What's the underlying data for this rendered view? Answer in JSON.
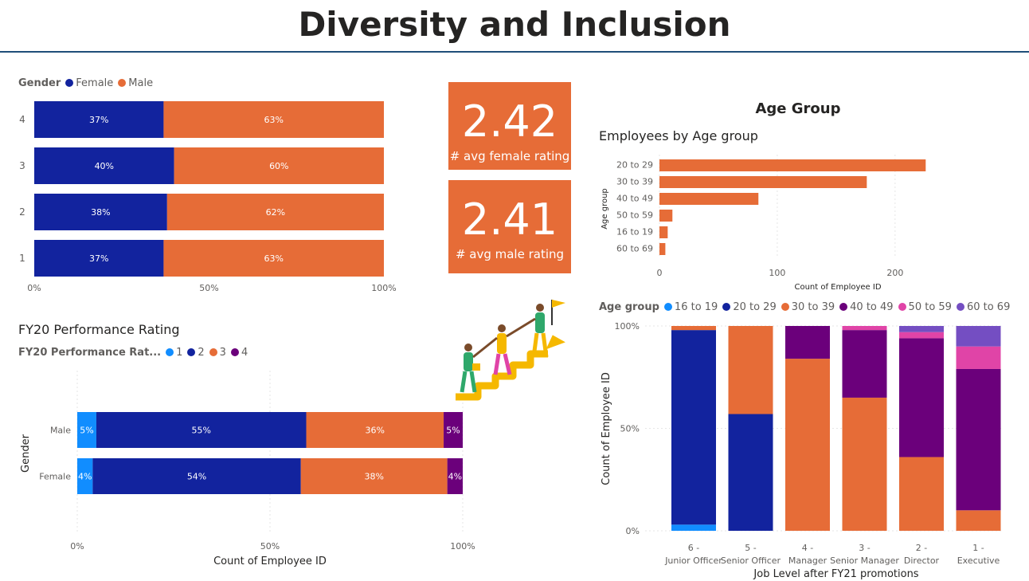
{
  "page": {
    "title": "Diversity and Inclusion"
  },
  "colors": {
    "female": "#12239e",
    "male": "#e66c37",
    "r1": "#118dff",
    "r2": "#12239e",
    "r3": "#e66c37",
    "r4": "#6b007b",
    "a50": "#e044a7",
    "a60": "#744ec2",
    "rule": "#1f4e79"
  },
  "kpi": {
    "female": {
      "value": "2.42",
      "label": "# avg female rating"
    },
    "male": {
      "value": "2.41",
      "label": "# avg male rating"
    }
  },
  "icons": {
    "illustration": "people-climbing-stairs-icon"
  },
  "chart_data": [
    {
      "id": "gender-by-rating",
      "type": "bar",
      "orientation": "horizontal",
      "stacked": "100%",
      "legend_title": "Gender",
      "categories": [
        "4",
        "3",
        "2",
        "1"
      ],
      "series": [
        {
          "name": "Female",
          "values": [
            37,
            40,
            38,
            37
          ],
          "labels": [
            "37%",
            "40%",
            "38%",
            "37%"
          ]
        },
        {
          "name": "Male",
          "values": [
            63,
            60,
            62,
            63
          ],
          "labels": [
            "63%",
            "60%",
            "62%",
            "63%"
          ]
        }
      ],
      "xticks": [
        "0%",
        "50%",
        "100%"
      ],
      "xlim": [
        0,
        100
      ],
      "legend_position": "top-left"
    },
    {
      "id": "age-group",
      "type": "bar",
      "orientation": "horizontal",
      "header": "Age Group",
      "title": "Employees by Age group",
      "categories": [
        "20 to 29",
        "30 to 39",
        "40 to 49",
        "50 to 59",
        "16 to 19",
        "60 to 69"
      ],
      "values": [
        226,
        176,
        84,
        11,
        7,
        5
      ],
      "xlabel": "Count of Employee ID",
      "ylabel": "Age group",
      "xticks": [
        "0",
        "100",
        "200"
      ],
      "xlim": [
        0,
        240
      ]
    },
    {
      "id": "fy20-performance",
      "type": "bar",
      "orientation": "horizontal",
      "stacked": "100%",
      "title": "FY20 Performance Rating",
      "legend_title": "FY20 Performance Rat...",
      "categories": [
        "Male",
        "Female"
      ],
      "series": [
        {
          "name": "1",
          "values": [
            5,
            4
          ],
          "labels": [
            "5%",
            "4%"
          ]
        },
        {
          "name": "2",
          "values": [
            55,
            54
          ],
          "labels": [
            "55%",
            "54%"
          ]
        },
        {
          "name": "3",
          "values": [
            36,
            38
          ],
          "labels": [
            "36%",
            "38%"
          ]
        },
        {
          "name": "4",
          "values": [
            5,
            4
          ],
          "labels": [
            "5%",
            "4%"
          ]
        }
      ],
      "xlabel": "Count of Employee ID",
      "ylabel": "Gender",
      "xticks": [
        "0%",
        "50%",
        "100%"
      ],
      "xlim": [
        0,
        100
      ],
      "legend_position": "top-left"
    },
    {
      "id": "age-by-job-level",
      "type": "bar",
      "orientation": "vertical",
      "stacked": "100%",
      "legend_title": "Age group",
      "categories": [
        "6 - Junior Officer",
        "5 - Senior Officer",
        "4 - Manager",
        "3 - Senior Manager",
        "2 - Director",
        "1 - Executive"
      ],
      "series": [
        {
          "name": "16 to 19",
          "values": [
            3,
            0,
            0,
            0,
            0,
            0
          ]
        },
        {
          "name": "20 to 29",
          "values": [
            95,
            57,
            0,
            0,
            0,
            0
          ]
        },
        {
          "name": "30 to 39",
          "values": [
            2,
            43,
            84,
            65,
            36,
            10
          ]
        },
        {
          "name": "40 to 49",
          "values": [
            0,
            0,
            16,
            33,
            58,
            69
          ]
        },
        {
          "name": "50 to 59",
          "values": [
            0,
            0,
            0,
            2,
            3,
            11
          ]
        },
        {
          "name": "60 to 69",
          "values": [
            0,
            0,
            0,
            0,
            3,
            10
          ]
        }
      ],
      "xlabel": "Job Level after FY21 promotions",
      "ylabel": "Count of Employee ID",
      "yticks": [
        "0%",
        "50%",
        "100%"
      ],
      "ylim": [
        0,
        100
      ],
      "legend_position": "top-left"
    }
  ]
}
